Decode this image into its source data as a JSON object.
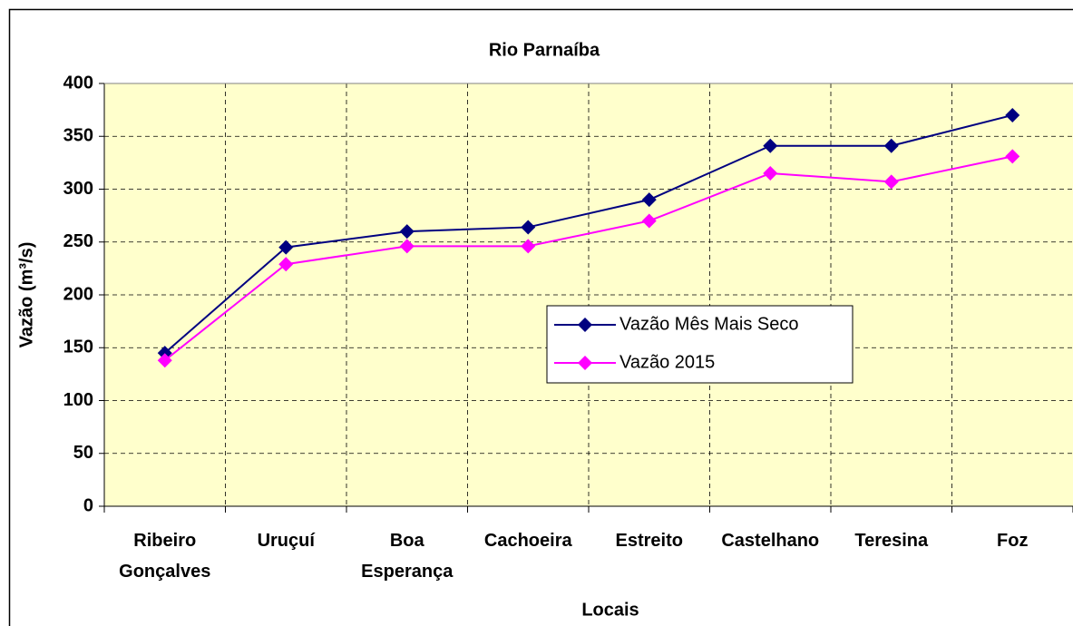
{
  "chart_data": {
    "type": "line",
    "title": "Rio Parnaíba",
    "x_label": "Locais",
    "y_label": "Vazão (m³/s)",
    "categories": [
      "Ribeiro Gonçalves",
      "Uruçuí",
      "Boa Esperança",
      "Cachoeira",
      "Estreito",
      "Castelhano",
      "Teresina",
      "Foz"
    ],
    "series": [
      {
        "name": "Vazão Mês Mais Seco",
        "color": "#000080",
        "values": [
          145,
          245,
          260,
          264,
          290,
          341,
          341,
          370
        ]
      },
      {
        "name": "Vazão 2015",
        "color": "#ff00ff",
        "values": [
          138,
          229,
          246,
          246,
          270,
          315,
          307,
          331
        ]
      }
    ],
    "ylim": [
      0,
      400
    ],
    "yticks": [
      0,
      50,
      100,
      150,
      200,
      250,
      300,
      350,
      400
    ],
    "grid": true,
    "background": "#ffffcc"
  }
}
